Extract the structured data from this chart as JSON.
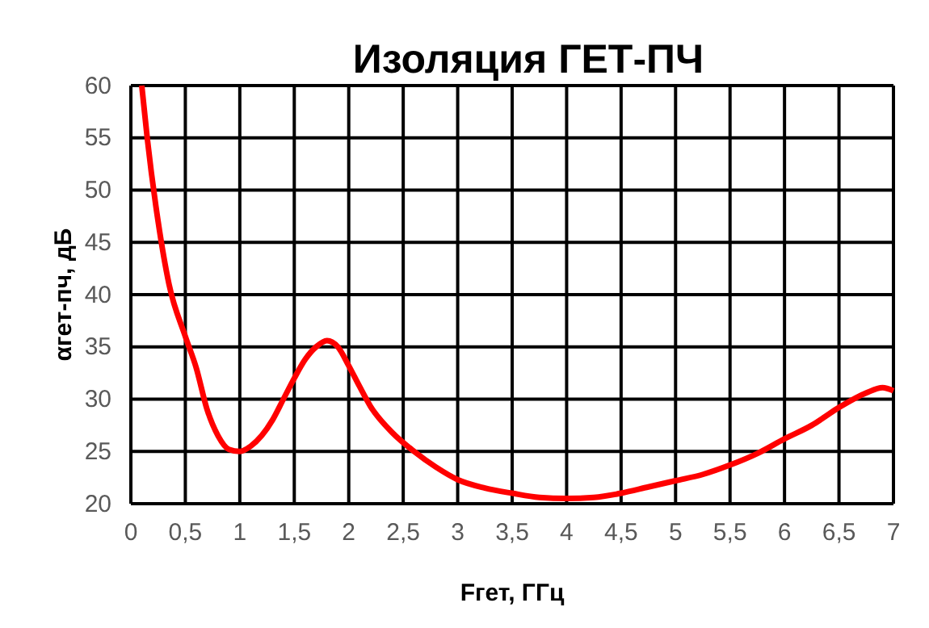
{
  "chart_data": {
    "type": "line",
    "title": "Изоляция ГЕТ-ПЧ",
    "xlabel": "Fгет, ГГц",
    "ylabel": "αгет-пч, дБ",
    "series": [
      {
        "color": "#ff0000",
        "x": [
          0.1,
          0.15,
          0.25,
          0.35,
          0.5,
          0.6,
          0.7,
          0.8,
          0.9,
          1.0,
          1.1,
          1.2,
          1.3,
          1.4,
          1.5,
          1.6,
          1.7,
          1.8,
          1.9,
          2.0,
          2.1,
          2.2,
          2.4,
          2.6,
          2.8,
          3.0,
          3.25,
          3.5,
          3.75,
          4.0,
          4.25,
          4.5,
          4.75,
          5.0,
          5.25,
          5.5,
          5.75,
          6.0,
          6.25,
          6.5,
          6.75,
          6.9,
          7.0
        ],
        "values": [
          60,
          55,
          47,
          41,
          36,
          33,
          29,
          26.5,
          25.2,
          25,
          25.5,
          26.5,
          28,
          30,
          32,
          33.8,
          35,
          35.6,
          35,
          33.2,
          31.2,
          29.3,
          26.8,
          25,
          23.5,
          22.3,
          21.5,
          21,
          20.6,
          20.5,
          20.6,
          21,
          21.6,
          22.2,
          22.8,
          23.7,
          24.8,
          26.2,
          27.5,
          29.2,
          30.6,
          31.1,
          30.8
        ]
      }
    ],
    "xlim": [
      0,
      7
    ],
    "xticks": [
      0,
      {
        "value": 0.5,
        "label": "0,5"
      },
      1,
      {
        "value": 1.5,
        "label": "1,5"
      },
      2,
      {
        "value": 2.5,
        "label": "2,5"
      },
      3,
      {
        "value": 3.5,
        "label": "3,5"
      },
      4,
      {
        "value": 4.5,
        "label": "4,5"
      },
      5,
      {
        "value": 5.5,
        "label": "5,5"
      },
      6,
      {
        "value": 6.5,
        "label": "6,5"
      },
      7
    ],
    "ylim": [
      20,
      60
    ],
    "yticks": [
      20,
      25,
      30,
      35,
      40,
      45,
      50,
      55,
      60
    ],
    "grid": true,
    "marker": "none",
    "line_style": "solid"
  }
}
